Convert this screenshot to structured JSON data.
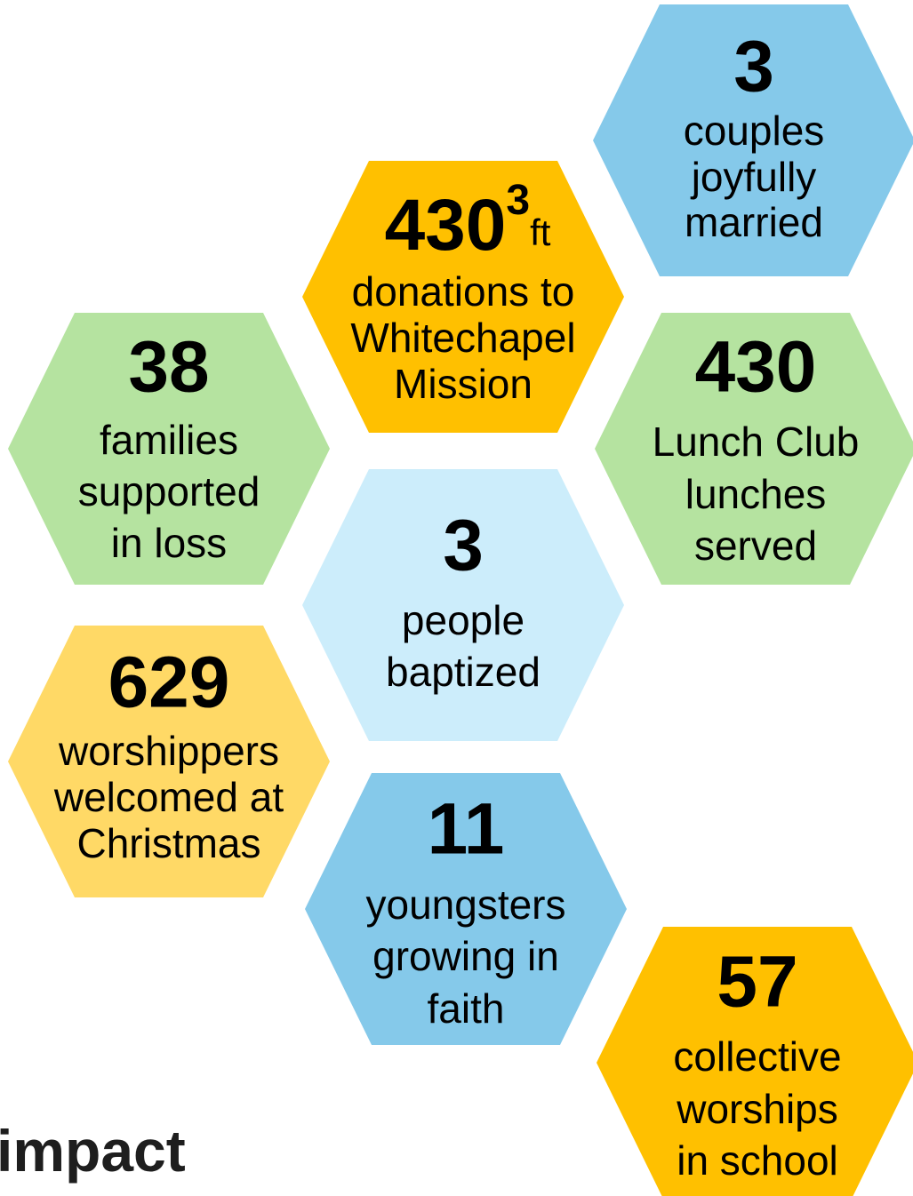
{
  "hexagons": [
    {
      "number": "3",
      "lines": [
        "couples",
        "joyfully",
        "married"
      ]
    },
    {
      "number": "430",
      "superscript": "3",
      "unit": "ft",
      "lines": [
        "donations to",
        "Whitechapel",
        "Mission"
      ]
    },
    {
      "number": "38",
      "lines": [
        "families",
        "supported",
        "in loss"
      ]
    },
    {
      "number": "430",
      "lines": [
        "Lunch Club",
        "lunches",
        "served"
      ]
    },
    {
      "number": "3",
      "lines": [
        "people",
        "baptized"
      ]
    },
    {
      "number": "629",
      "lines": [
        "worshippers",
        "welcomed at",
        "Christmas"
      ]
    },
    {
      "number": "11",
      "lines": [
        "youngsters",
        "growing in",
        "faith"
      ]
    },
    {
      "number": "57",
      "lines": [
        "collective",
        "worships",
        "in school"
      ]
    }
  ],
  "footer": "impact"
}
